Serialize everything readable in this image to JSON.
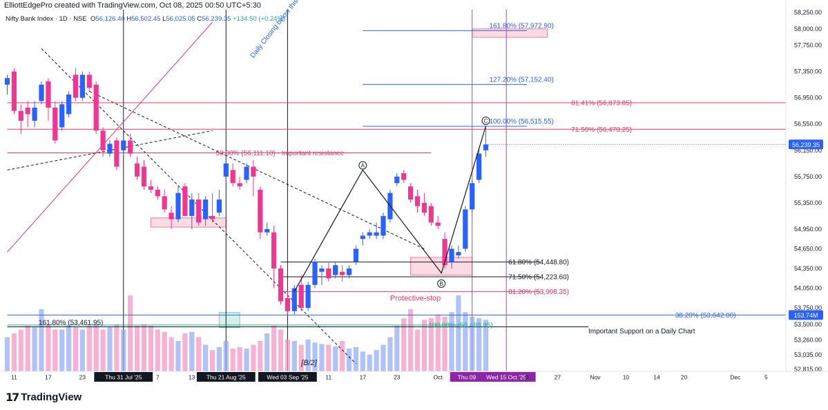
{
  "header": {
    "created_by": "ElliottEdgePro created with TradingView.com, Oct 08, 2025 00:50 UTC+5:30",
    "symbol": "Nifty Bank Index · 1D · NSE",
    "o_label": "O",
    "o_value": "56,126.40",
    "h_label": "H",
    "h_value": "56,502.45",
    "l_label": "L",
    "l_value": "56,025.05",
    "c_label": "C",
    "c_value": "56,239.35",
    "change": "+134.50 (+0.24%)"
  },
  "footer": {
    "brand": "TradingView",
    "brand_mark": "17"
  },
  "chart_data": {
    "type": "candlestick",
    "title": "Nifty Bank Index · 1D · NSE",
    "ylim": [
      52700,
      58300
    ],
    "y_ticks": [
      {
        "value": 58250,
        "label": "58,250.00"
      },
      {
        "value": 58000,
        "label": "58,000.00"
      },
      {
        "value": 57750,
        "label": "57,750.00"
      },
      {
        "value": 57350,
        "label": "57,350.00"
      },
      {
        "value": 56950,
        "label": "56,950.00"
      },
      {
        "value": 56550,
        "label": "56,550.00"
      },
      {
        "value": 56150,
        "label": "56,150.00"
      },
      {
        "value": 55750,
        "label": "55,750.00"
      },
      {
        "value": 55350,
        "label": "55,350.00"
      },
      {
        "value": 54950,
        "label": "54,950.00"
      },
      {
        "value": 54650,
        "label": "54,650.00"
      },
      {
        "value": 54350,
        "label": "54,350.00"
      },
      {
        "value": 54050,
        "label": "54,050.00"
      },
      {
        "value": 53750,
        "label": "53,750.00"
      },
      {
        "value": 53500,
        "label": "53,500.00"
      },
      {
        "value": 53260,
        "label": "53,260.00"
      },
      {
        "value": 53035,
        "label": "53,035.00"
      },
      {
        "value": 52815,
        "label": "52,815.00"
      }
    ],
    "price_tags": [
      {
        "value": 56239.35,
        "label": "56,239.35",
        "color": "#2962ff"
      },
      {
        "value": 53642,
        "label": "153.74M",
        "color": "#2962ff"
      }
    ],
    "x_labels": [
      {
        "i": 1,
        "label": "11"
      },
      {
        "i": 6,
        "label": "17"
      },
      {
        "i": 11,
        "label": "23"
      },
      {
        "i": 17,
        "label": "Thu 31 Jul '25",
        "highlight": "dark"
      },
      {
        "i": 22,
        "label": "7"
      },
      {
        "i": 27,
        "label": "13"
      },
      {
        "i": 32,
        "label": "Thu 21 Aug '25",
        "highlight": "dark"
      },
      {
        "i": 41,
        "label": "Wed 03 Sep '25",
        "highlight": "dark"
      },
      {
        "i": 47,
        "label": "11"
      },
      {
        "i": 52,
        "label": "17"
      },
      {
        "i": 57,
        "label": "23"
      },
      {
        "i": 63,
        "label": "Oct"
      },
      {
        "i": 68,
        "label": "Thu 09 Oct",
        "highlight": "purple"
      },
      {
        "i": 73,
        "label": "Wed 15 Oct '25",
        "highlight": "purple"
      },
      {
        "i": 76,
        "label": "0"
      },
      {
        "i": 80.5,
        "label": "27"
      },
      {
        "i": 86,
        "label": "Nov"
      },
      {
        "i": 90.5,
        "label": "10"
      },
      {
        "i": 95,
        "label": "14"
      },
      {
        "i": 99,
        "label": "20"
      },
      {
        "i": 106.5,
        "label": "Dec"
      },
      {
        "i": 111,
        "label": "5"
      }
    ],
    "candles": [
      {
        "o": 57150,
        "h": 57300,
        "l": 57000,
        "c": 57250
      },
      {
        "o": 57350,
        "h": 57400,
        "l": 56700,
        "c": 56750
      },
      {
        "o": 56750,
        "h": 56850,
        "l": 56400,
        "c": 56600
      },
      {
        "o": 56800,
        "h": 56900,
        "l": 56500,
        "c": 56700
      },
      {
        "o": 56600,
        "h": 56900,
        "l": 56500,
        "c": 56800
      },
      {
        "o": 56900,
        "h": 57200,
        "l": 56850,
        "c": 57150
      },
      {
        "o": 57200,
        "h": 57250,
        "l": 56600,
        "c": 56800
      },
      {
        "o": 56800,
        "h": 56900,
        "l": 56250,
        "c": 56300
      },
      {
        "o": 56500,
        "h": 56900,
        "l": 56450,
        "c": 56850
      },
      {
        "o": 56700,
        "h": 57050,
        "l": 56650,
        "c": 57000
      },
      {
        "o": 57300,
        "h": 57400,
        "l": 56900,
        "c": 56950
      },
      {
        "o": 56950,
        "h": 57350,
        "l": 56900,
        "c": 57300
      },
      {
        "o": 57300,
        "h": 57350,
        "l": 57050,
        "c": 57100
      },
      {
        "o": 57150,
        "h": 57200,
        "l": 56400,
        "c": 56450
      },
      {
        "o": 56450,
        "h": 56500,
        "l": 56050,
        "c": 56150
      },
      {
        "o": 56100,
        "h": 56300,
        "l": 56050,
        "c": 56250
      },
      {
        "o": 56300,
        "h": 56350,
        "l": 55850,
        "c": 55900
      },
      {
        "o": 56150,
        "h": 56350,
        "l": 56050,
        "c": 56300
      },
      {
        "o": 56300,
        "h": 56400,
        "l": 56050,
        "c": 56100
      },
      {
        "o": 55950,
        "h": 56050,
        "l": 55700,
        "c": 55750
      },
      {
        "o": 55900,
        "h": 56000,
        "l": 55550,
        "c": 55600
      },
      {
        "o": 55600,
        "h": 55700,
        "l": 55500,
        "c": 55550
      },
      {
        "o": 55550,
        "h": 55600,
        "l": 55400,
        "c": 55450
      },
      {
        "o": 55450,
        "h": 55550,
        "l": 55200,
        "c": 55250
      },
      {
        "o": 55200,
        "h": 55300,
        "l": 54950,
        "c": 55100
      },
      {
        "o": 55100,
        "h": 55600,
        "l": 55050,
        "c": 55500
      },
      {
        "o": 55600,
        "h": 55650,
        "l": 55150,
        "c": 55150
      },
      {
        "o": 55150,
        "h": 55500,
        "l": 54950,
        "c": 55400
      },
      {
        "o": 55400,
        "h": 55500,
        "l": 55000,
        "c": 55050
      },
      {
        "o": 55100,
        "h": 55450,
        "l": 55000,
        "c": 55400
      },
      {
        "o": 55150,
        "h": 55500,
        "l": 55050,
        "c": 55100
      },
      {
        "o": 55200,
        "h": 55550,
        "l": 55150,
        "c": 55400
      },
      {
        "o": 55750,
        "h": 56100,
        "l": 55650,
        "c": 55950
      },
      {
        "o": 55850,
        "h": 55950,
        "l": 55600,
        "c": 55650
      },
      {
        "o": 55650,
        "h": 55750,
        "l": 55550,
        "c": 55600
      },
      {
        "o": 55700,
        "h": 55950,
        "l": 55650,
        "c": 55900
      },
      {
        "o": 55900,
        "h": 56000,
        "l": 55450,
        "c": 55750
      },
      {
        "o": 55550,
        "h": 55600,
        "l": 54800,
        "c": 54900
      },
      {
        "o": 54900,
        "h": 55050,
        "l": 54850,
        "c": 54950
      },
      {
        "o": 54900,
        "h": 55000,
        "l": 54050,
        "c": 54350
      },
      {
        "o": 54350,
        "h": 54400,
        "l": 53800,
        "c": 53850
      },
      {
        "o": 53900,
        "h": 54000,
        "l": 53650,
        "c": 53700
      },
      {
        "o": 53700,
        "h": 54100,
        "l": 53650,
        "c": 54050
      },
      {
        "o": 54100,
        "h": 54250,
        "l": 53700,
        "c": 53750
      },
      {
        "o": 53750,
        "h": 54150,
        "l": 53700,
        "c": 54100
      },
      {
        "o": 54100,
        "h": 54500,
        "l": 54050,
        "c": 54450
      },
      {
        "o": 54300,
        "h": 54400,
        "l": 54100,
        "c": 54350
      },
      {
        "o": 54350,
        "h": 54450,
        "l": 54150,
        "c": 54200
      },
      {
        "o": 54250,
        "h": 54450,
        "l": 54200,
        "c": 54400
      },
      {
        "o": 54300,
        "h": 54400,
        "l": 54150,
        "c": 54250
      },
      {
        "o": 54250,
        "h": 54400,
        "l": 54200,
        "c": 54350
      },
      {
        "o": 54450,
        "h": 54700,
        "l": 54400,
        "c": 54650
      },
      {
        "o": 54800,
        "h": 54900,
        "l": 54700,
        "c": 54850
      },
      {
        "o": 54850,
        "h": 54950,
        "l": 54800,
        "c": 54900
      },
      {
        "o": 54850,
        "h": 55050,
        "l": 54800,
        "c": 54900
      },
      {
        "o": 54850,
        "h": 55200,
        "l": 54800,
        "c": 55150
      },
      {
        "o": 55100,
        "h": 55550,
        "l": 55050,
        "c": 55500
      },
      {
        "o": 55650,
        "h": 55800,
        "l": 55600,
        "c": 55750
      },
      {
        "o": 55800,
        "h": 55850,
        "l": 55650,
        "c": 55700
      },
      {
        "o": 55600,
        "h": 55650,
        "l": 55350,
        "c": 55400
      },
      {
        "o": 55450,
        "h": 55550,
        "l": 55200,
        "c": 55300
      },
      {
        "o": 55350,
        "h": 55500,
        "l": 55150,
        "c": 55200
      },
      {
        "o": 55300,
        "h": 55350,
        "l": 55000,
        "c": 55050
      },
      {
        "o": 55050,
        "h": 55150,
        "l": 54950,
        "c": 55000
      },
      {
        "o": 54800,
        "h": 54900,
        "l": 54350,
        "c": 54400
      },
      {
        "o": 54450,
        "h": 54700,
        "l": 54350,
        "c": 54650
      },
      {
        "o": 54550,
        "h": 54700,
        "l": 54500,
        "c": 54600
      },
      {
        "o": 54650,
        "h": 55300,
        "l": 54600,
        "c": 55250
      },
      {
        "o": 55250,
        "h": 55700,
        "l": 55200,
        "c": 55650
      },
      {
        "o": 55700,
        "h": 56200,
        "l": 55650,
        "c": 56100
      },
      {
        "o": 56150,
        "h": 56500,
        "l": 56050,
        "c": 56239.35
      }
    ],
    "volume_max_label": "153.74M",
    "volumes": [
      0.45,
      0.5,
      0.55,
      0.6,
      0.58,
      0.82,
      0.62,
      0.55,
      0.55,
      0.6,
      0.58,
      0.55,
      0.6,
      0.62,
      0.55,
      0.58,
      0.62,
      0.55,
      1.0,
      0.6,
      0.62,
      0.6,
      0.55,
      0.52,
      0.45,
      0.4,
      0.5,
      0.52,
      0.45,
      0.35,
      0.28,
      0.32,
      0.4,
      0.3,
      0.32,
      0.3,
      0.35,
      0.4,
      0.5,
      0.6,
      0.55,
      0.42,
      0.4,
      0.35,
      0.42,
      0.38,
      0.36,
      0.35,
      0.33,
      0.4,
      0.3,
      0.32,
      0.26,
      0.22,
      0.28,
      0.35,
      0.45,
      0.6,
      0.7,
      0.82,
      0.55,
      0.68,
      0.7,
      0.75,
      0.72,
      0.78,
      1.0,
      0.78,
      0.72,
      0.7,
      0.68
    ],
    "vertical_lines": [
      {
        "i": 17,
        "color": "#131722"
      },
      {
        "i": 32,
        "color": "#131722"
      },
      {
        "i": 41,
        "color": "#131722"
      },
      {
        "i": 68,
        "color": "#b33fc4"
      },
      {
        "i": 73,
        "color": "#b33fc4"
      }
    ],
    "levels": [
      {
        "value": 57972.9,
        "label": "161.80% (57,972.90)",
        "color": "#2962ff",
        "i1": 52,
        "i2": 76
      },
      {
        "value": 57152.4,
        "label": "127.20% (57,152.40)",
        "color": "#2962ff",
        "i1": 52,
        "i2": 76
      },
      {
        "value": 56873.85,
        "label": "81.41% (56,873.85)",
        "color": "#f23666",
        "i1": 0,
        "i2": 114
      },
      {
        "value": 56515.55,
        "label": "100.00% (56,515.55)",
        "color": "#2962ff",
        "i1": 52,
        "i2": 76
      },
      {
        "value": 56470.25,
        "label": "71.50% (56,470.25)",
        "color": "#f23666",
        "i1": 0,
        "i2": 114
      },
      {
        "value": 56111.1,
        "label": "50.00% (56,111.10) - Important resistance",
        "color": "#f23666",
        "i1": 0,
        "i2": 62
      },
      {
        "value": 54448.8,
        "label": "61.80% (54,448.80)",
        "color": "#131722",
        "i1": 40,
        "i2": 78
      },
      {
        "value": 54223.6,
        "label": "71.50% (54,223.60)",
        "color": "#131722",
        "i1": 40,
        "i2": 78
      },
      {
        "value": 53998.35,
        "label": "81.20% (53,998.35)",
        "color": "#f23666",
        "i1": 40,
        "i2": 78
      },
      {
        "value": 53642.0,
        "label": "38.20% (53,642.00)",
        "color": "#2962ff",
        "i1": 0,
        "i2": 114
      },
      {
        "value": 53488.85,
        "label": "100.00% (53,488.85)",
        "color": "#22ab94",
        "i1": 0,
        "i2": 67
      },
      {
        "value": 53461.95,
        "label": "161.80% (53,461.95)",
        "color": "#131722",
        "i1": 0,
        "i2": 85
      }
    ],
    "annotations": [
      {
        "text": "Important Support on a Daily Chart",
        "i": 85,
        "value": 53360,
        "color": "#131722"
      },
      {
        "text": "Protective-stop",
        "i": 56,
        "value": 53860,
        "color": "#f23666"
      },
      {
        "text": "Daily Closing below this will",
        "i": 36,
        "value": 57550,
        "color": "#2962ff",
        "rotate": -52
      },
      {
        "text": "[B/2]",
        "i": 43,
        "value": 52880,
        "color": "#131722"
      }
    ],
    "wave_labels": [
      {
        "text": "A",
        "i": 52,
        "value": 55920
      },
      {
        "text": "B",
        "i": 63.5,
        "value": 54120
      },
      {
        "text": "C",
        "i": 70,
        "value": 56600
      }
    ],
    "wave_path": [
      {
        "i": 42,
        "value": 54000
      },
      {
        "i": 52,
        "value": 55850
      },
      {
        "i": 63.5,
        "value": 54280
      },
      {
        "i": 70,
        "value": 56520
      }
    ],
    "zones": [
      {
        "i1": 21,
        "i2": 32,
        "v1": 55120,
        "v2": 54980,
        "color": "#f23666"
      },
      {
        "i1": 59,
        "i2": 68,
        "v1": 54520,
        "v2": 54250,
        "color": "#f23666"
      },
      {
        "i1": 68,
        "i2": 79,
        "v1": 58000,
        "v2": 57870,
        "color": "#f23666"
      },
      {
        "i1": 31,
        "i2": 34,
        "v1": 53680,
        "v2": 53450,
        "color": "#22ab94"
      }
    ],
    "trendlines": [
      {
        "i1": 0,
        "v1": 54600,
        "i2": 30,
        "v2": 58100,
        "color": "#f23666",
        "dash": false
      },
      {
        "i1": 5,
        "v1": 57700,
        "i2": 51,
        "v2": 52900,
        "color": "#131722",
        "dash": true
      },
      {
        "i1": 12,
        "v1": 57050,
        "i2": 61,
        "v2": 54650,
        "color": "#131722",
        "dash": true
      },
      {
        "i1": 0,
        "v1": 55850,
        "i2": 30,
        "v2": 56450,
        "color": "#131722",
        "dash": true
      }
    ]
  }
}
